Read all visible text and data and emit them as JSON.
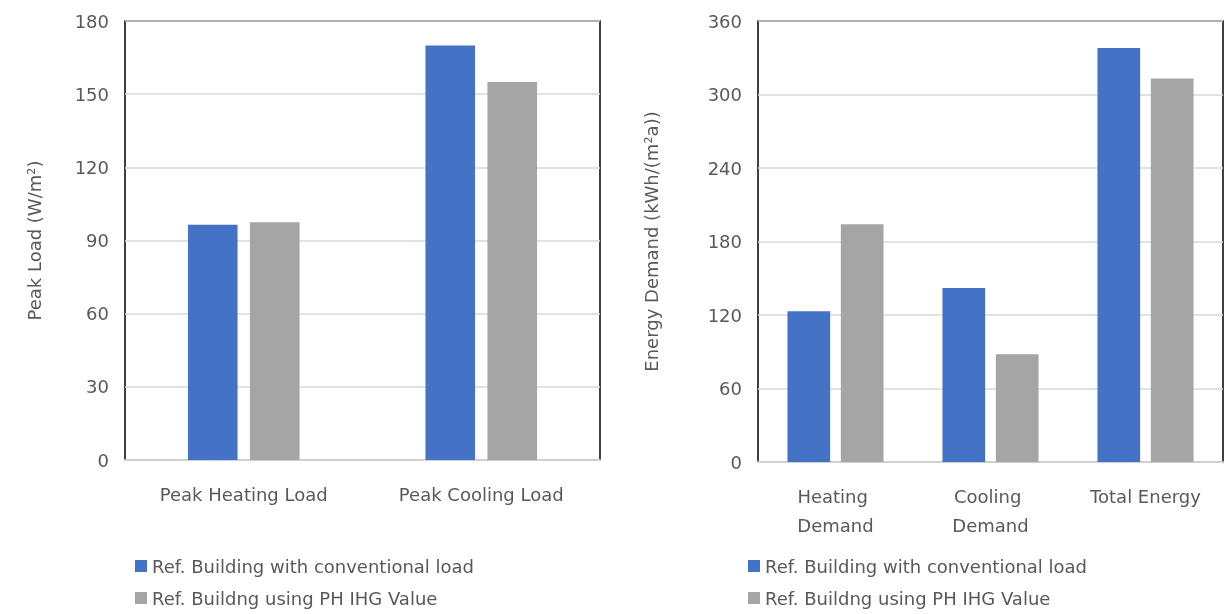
{
  "chart_data": [
    {
      "type": "bar",
      "ylabel": "Peak Load (W/m²)",
      "categories": [
        "Peak Heating Load",
        "Peak Cooling Load"
      ],
      "series": [
        {
          "name": "Ref. Building with conventional load",
          "color": "#4472c4",
          "values": [
            96.5,
            170
          ]
        },
        {
          "name": "Ref. Buildng using PH IHG Value",
          "color": "#a5a5a5",
          "values": [
            97.5,
            155
          ]
        }
      ],
      "ylim": [
        0,
        180
      ],
      "yticks": [
        0,
        30,
        60,
        90,
        120,
        150,
        180
      ],
      "grid": "y",
      "legend": "bottom"
    },
    {
      "type": "bar",
      "ylabel": "Energy Demand (kWh/(m²a))",
      "categories": [
        "Heating Demand",
        "Cooling Demand",
        "Total Energy"
      ],
      "series": [
        {
          "name": "Ref. Building with conventional load",
          "color": "#4472c4",
          "values": [
            123,
            142,
            338
          ]
        },
        {
          "name": "Ref. Buildng using PH IHG Value",
          "color": "#a5a5a5",
          "values": [
            194,
            88,
            313
          ]
        }
      ],
      "ylim": [
        0,
        360
      ],
      "yticks": [
        0,
        60,
        120,
        180,
        240,
        300,
        360
      ],
      "grid": "y",
      "legend": "bottom"
    }
  ]
}
